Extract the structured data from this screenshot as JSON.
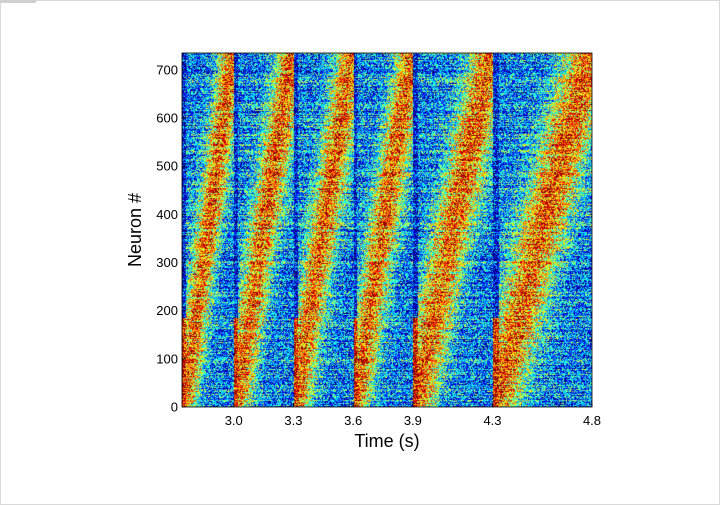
{
  "chart_data": {
    "type": "heatmap",
    "title": "",
    "xlabel": "Time (s)",
    "ylabel": "Neuron #",
    "x_ticks": [
      "3.0",
      "3.3",
      "3.6",
      "3.9",
      "4.3",
      "4.8"
    ],
    "y_ticks": [
      "0",
      "100",
      "200",
      "300",
      "400",
      "500",
      "600",
      "700"
    ],
    "ylim": [
      0,
      735
    ],
    "y_tick_values": [
      0,
      100,
      200,
      300,
      400,
      500,
      600,
      700
    ],
    "colormap": "jet",
    "colormap_stops": [
      "#00007f",
      "#0000ff",
      "#0080ff",
      "#00ffff",
      "#80ff80",
      "#ffff00",
      "#ff8000",
      "#ff0000",
      "#7f0000"
    ],
    "x_tick_values_s": [
      3.0,
      3.3,
      3.6,
      3.9,
      4.3,
      4.8
    ],
    "xlim": [
      2.74,
      4.8
    ],
    "cycle_boundaries_s": [
      2.74,
      3.0,
      3.3,
      3.6,
      3.9,
      4.3,
      4.8
    ],
    "grid": false,
    "colorbar": false
  }
}
